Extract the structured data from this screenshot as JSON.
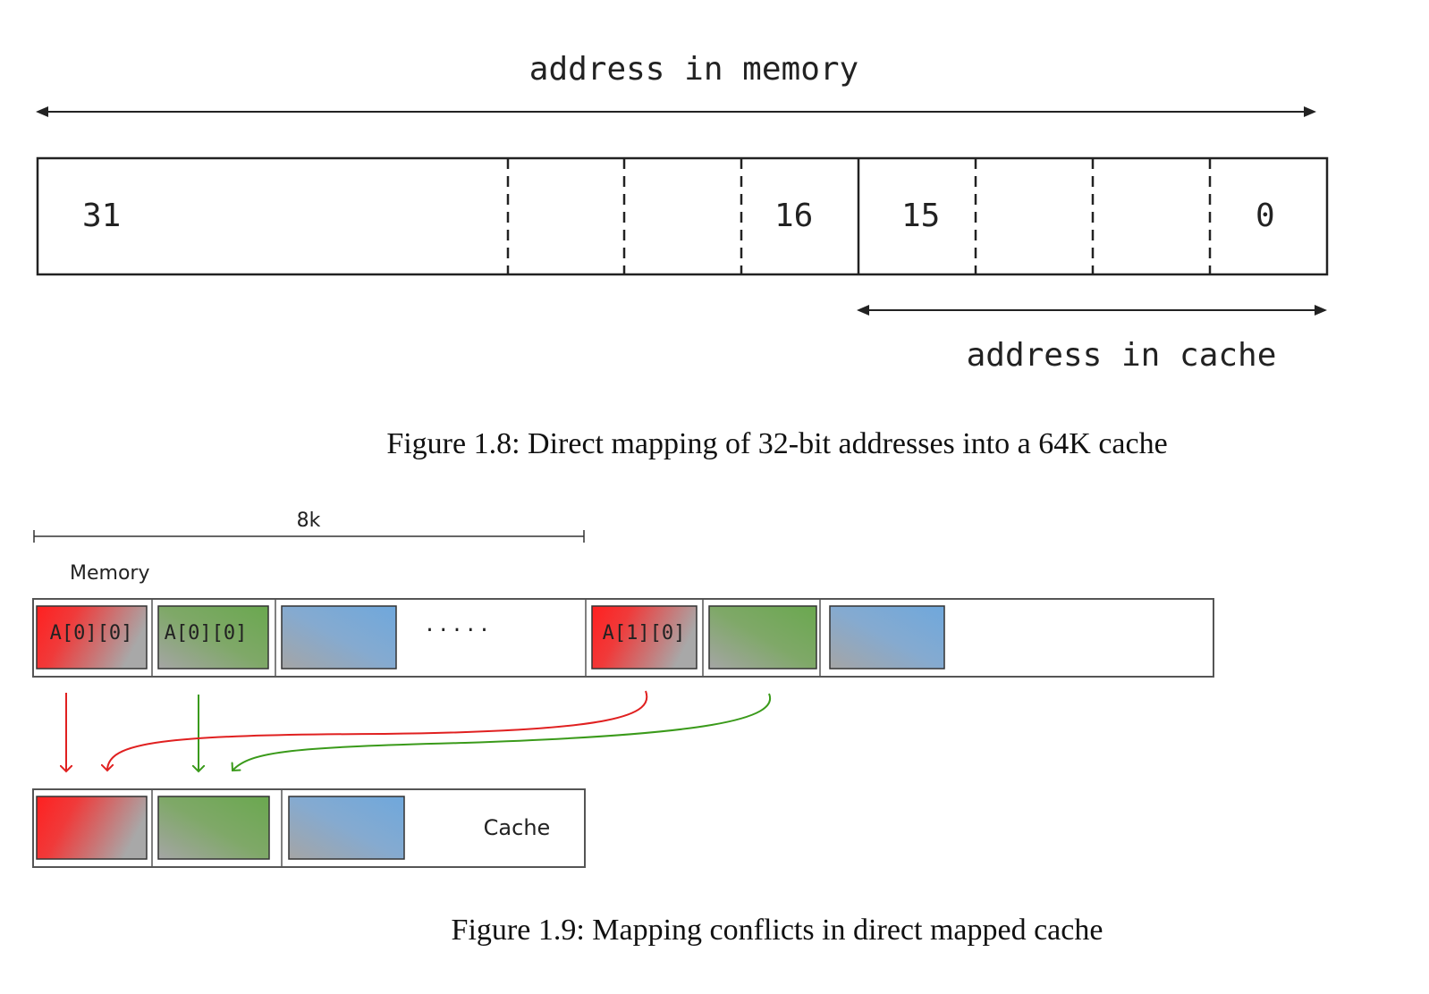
{
  "figure_1": {
    "top_label": "address in memory",
    "bottom_label": "address in cache",
    "bit_31": "31",
    "bit_16": "16",
    "bit_15": "15",
    "bit_0": "0",
    "caption": "Figure 1.8: Direct mapping of 32-bit addresses into a 64K cache"
  },
  "figure_2": {
    "span_label": "8k",
    "memory_label": "Memory",
    "cache_label": "Cache",
    "ellipsis": "·····",
    "memory_blocks": [
      {
        "label": "A[0][0]",
        "color": "red"
      },
      {
        "label": "A[0][0]",
        "color": "green"
      },
      {
        "label": "",
        "color": "blue"
      },
      {
        "label": "A[1][0]",
        "color": "red"
      },
      {
        "label": "",
        "color": "green"
      },
      {
        "label": "",
        "color": "blue"
      }
    ],
    "cache_blocks": [
      {
        "color": "red"
      },
      {
        "color": "green"
      },
      {
        "color": "blue"
      }
    ],
    "caption": "Figure 1.9: Mapping conflicts in direct mapped cache"
  },
  "colors": {
    "red": "#ff2a2a",
    "green": "#6aa84f",
    "blue": "#6fa8dc",
    "gray": "#a0a0a0",
    "arrow_red": "#e02020",
    "arrow_green": "#3a9a1a"
  }
}
